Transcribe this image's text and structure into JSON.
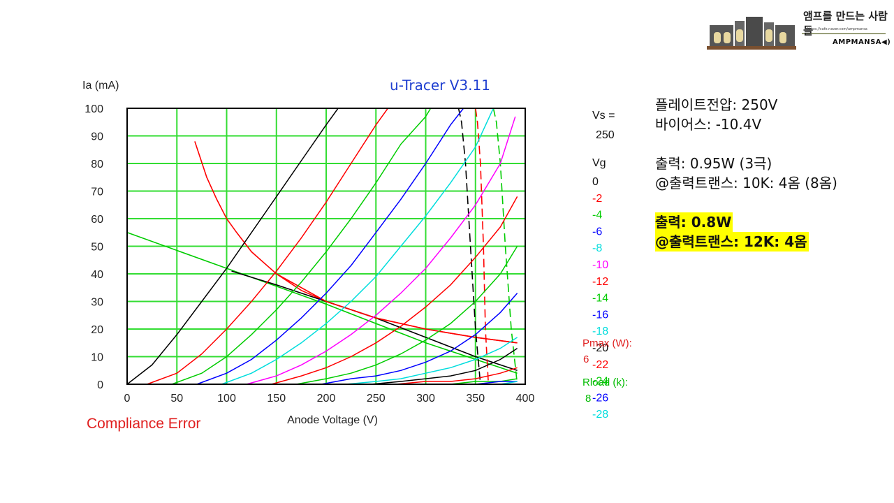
{
  "chart_data": {
    "type": "line",
    "title": "u-Tracer V3.11",
    "xlabel": "Anode Voltage (V)",
    "ylabel": "Ia (mA)",
    "xlim": [
      0,
      400
    ],
    "ylim": [
      0,
      100
    ],
    "x_ticks": [
      "0",
      "50",
      "100",
      "150",
      "200",
      "250",
      "300",
      "350",
      "400"
    ],
    "y_ticks": [
      "0",
      "10",
      "20",
      "30",
      "40",
      "50",
      "60",
      "70",
      "80",
      "90",
      "100"
    ],
    "grid": true,
    "status": "Compliance Error",
    "vs_label": "Vs =",
    "vs_value": "250",
    "vg_label": "Vg",
    "pmax_label": "Pmax (W):",
    "pmax_value": "6",
    "rload_label": "Rload (k):",
    "rload_value": "8",
    "series": [
      {
        "name": "0",
        "color": "#000000",
        "x": [
          0,
          25,
          50,
          75,
          100,
          125,
          150,
          175,
          200,
          212
        ],
        "y": [
          0,
          7,
          18,
          30,
          42,
          55,
          68,
          81,
          94,
          100
        ]
      },
      {
        "name": "-2",
        "color": "#ff0000",
        "x": [
          20,
          50,
          75,
          100,
          125,
          150,
          175,
          200,
          225,
          250,
          262
        ],
        "y": [
          0,
          4,
          11,
          20,
          30,
          41,
          53,
          66,
          80,
          94,
          100
        ]
      },
      {
        "name": "-4",
        "color": "#00cc00",
        "x": [
          45,
          75,
          100,
          125,
          150,
          175,
          200,
          225,
          250,
          275,
          300,
          305
        ],
        "y": [
          0,
          4,
          10,
          18,
          27,
          37,
          48,
          60,
          73,
          87,
          97,
          100
        ]
      },
      {
        "name": "-6",
        "color": "#0000ff",
        "x": [
          70,
          100,
          125,
          150,
          175,
          200,
          225,
          250,
          275,
          300,
          325,
          338
        ],
        "y": [
          0,
          4,
          9,
          16,
          24,
          33,
          43,
          55,
          67,
          80,
          94,
          100
        ]
      },
      {
        "name": "-8",
        "color": "#00dddd",
        "x": [
          95,
          125,
          150,
          175,
          200,
          225,
          250,
          275,
          300,
          325,
          350,
          368
        ],
        "y": [
          0,
          4,
          9,
          15,
          22,
          30,
          39,
          50,
          61,
          73,
          86,
          100
        ]
      },
      {
        "name": "-10",
        "color": "#ff00ff",
        "x": [
          120,
          150,
          175,
          200,
          225,
          250,
          275,
          300,
          325,
          350,
          375,
          390
        ],
        "y": [
          0,
          3,
          7,
          12,
          18,
          25,
          33,
          42,
          53,
          65,
          80,
          97
        ]
      },
      {
        "name": "-12",
        "color": "#ff0000",
        "x": [
          145,
          175,
          200,
          225,
          250,
          275,
          300,
          325,
          350,
          375,
          392
        ],
        "y": [
          0,
          3,
          6,
          10,
          15,
          21,
          28,
          36,
          46,
          57,
          68
        ]
      },
      {
        "name": "-14",
        "color": "#00cc00",
        "x": [
          170,
          200,
          225,
          250,
          275,
          300,
          325,
          350,
          375,
          392
        ],
        "y": [
          0,
          2,
          4,
          7,
          11,
          16,
          22,
          30,
          40,
          50
        ]
      },
      {
        "name": "-16",
        "color": "#0000ff",
        "x": [
          195,
          225,
          250,
          275,
          300,
          325,
          350,
          375,
          392
        ],
        "y": [
          0,
          2,
          3,
          5,
          8,
          12,
          18,
          26,
          33
        ]
      },
      {
        "name": "-18",
        "color": "#00dddd",
        "x": [
          220,
          250,
          275,
          300,
          325,
          350,
          375,
          392
        ],
        "y": [
          0,
          1,
          2,
          4,
          6,
          9,
          13,
          17
        ]
      },
      {
        "name": "-20",
        "color": "#000000",
        "x": [
          245,
          275,
          300,
          325,
          350,
          375,
          392
        ],
        "y": [
          0,
          1,
          2,
          3,
          5,
          9,
          13
        ]
      },
      {
        "name": "-22",
        "color": "#ff0000",
        "x": [
          270,
          300,
          325,
          350,
          375,
          392
        ],
        "y": [
          0,
          1,
          1,
          2,
          4,
          6
        ]
      },
      {
        "name": "-24",
        "color": "#00cc00",
        "x": [
          295,
          325,
          350,
          375,
          392
        ],
        "y": [
          0,
          0,
          1,
          1,
          2
        ]
      },
      {
        "name": "-26",
        "color": "#0000ff",
        "x": [
          320,
          350,
          375,
          392
        ],
        "y": [
          0,
          0,
          1,
          1
        ]
      },
      {
        "name": "-28",
        "color": "#00dddd",
        "x": [
          345,
          375,
          392
        ],
        "y": [
          0,
          0,
          1
        ]
      }
    ],
    "overlays": [
      {
        "kind": "pmax-curve",
        "color": "#ff0000",
        "dash": false,
        "x": [
          68,
          80,
          90,
          100,
          110,
          125,
          150,
          175,
          200,
          250,
          300,
          350,
          392
        ],
        "y": [
          88,
          75,
          67,
          60,
          55,
          48,
          40,
          34,
          30,
          24,
          20,
          17,
          15
        ]
      },
      {
        "kind": "load-line",
        "color": "#00cc00",
        "dash": false,
        "x": [
          0,
          100,
          200,
          300,
          392
        ],
        "y": [
          55,
          42,
          29,
          15,
          4
        ]
      },
      {
        "kind": "load-line",
        "color": "#000000",
        "dash": false,
        "x": [
          105,
          150,
          200,
          250,
          300,
          350,
          392
        ],
        "y": [
          41,
          36,
          30,
          24,
          17,
          10,
          5
        ]
      },
      {
        "kind": "load-line",
        "color": "#ff0000",
        "dash": false,
        "x": [
          150,
          200,
          250,
          300,
          350,
          392
        ],
        "y": [
          40,
          30,
          24,
          20,
          17,
          15
        ]
      },
      {
        "kind": "vertical",
        "color": "#000000",
        "dash": true,
        "x": [
          333,
          336,
          340,
          345,
          350,
          355
        ],
        "y": [
          100,
          95,
          80,
          50,
          20,
          0
        ]
      },
      {
        "kind": "vertical",
        "color": "#ff0000",
        "dash": true,
        "x": [
          350,
          352,
          355,
          358,
          360,
          363
        ],
        "y": [
          100,
          95,
          80,
          50,
          20,
          0
        ]
      },
      {
        "kind": "vertical",
        "color": "#00cc00",
        "dash": true,
        "x": [
          368,
          371,
          375,
          380,
          386,
          392
        ],
        "y": [
          100,
          95,
          80,
          50,
          20,
          0
        ]
      }
    ]
  },
  "notes": {
    "plate_voltage": "플레이트전압: 250V",
    "bias": "바이어스: -10.4V",
    "output_triode": "출력: 0.95W (3극)",
    "ot_triode": "@출력트랜스: 10K: 4옴 (8옴)",
    "output_highlight": "출력: 0.8W",
    "ot_highlight": "@출력트랜스: 12K: 4옴"
  },
  "logo": {
    "title": "앰프를 만드는 사람들",
    "url": "https://cafe.naver.com/ampmansa",
    "name": "AMPMANSA◀)"
  }
}
